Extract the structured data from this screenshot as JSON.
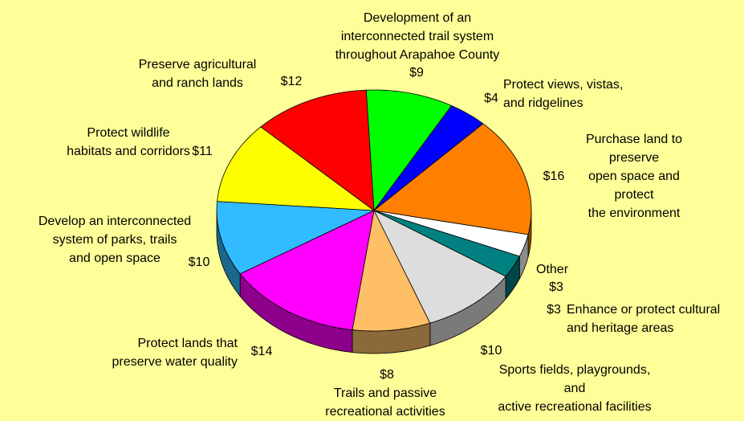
{
  "chart_data": {
    "type": "pie",
    "categories": [
      "Development of an\ninterconnected trail system\nthroughout Arapahoe County",
      "Protect views, vistas,\nand ridgelines",
      "Purchase land to preserve\nopen space and protect\nthe environment",
      "Other",
      "Enhance or protect cultural\nand heritage areas",
      "Sports fields, playgrounds, and\nactive recreational facilities",
      "Trails and passive\nrecreational activities",
      "Protect lands that\npreserve water quality",
      "Develop an interconnected\nsystem of parks, trails\nand open space",
      "Protect wildlife\nhabitats and corridors",
      "Preserve agricultural\nand ranch lands"
    ],
    "values": [
      9,
      4,
      16,
      3,
      3,
      10,
      8,
      14,
      10,
      11,
      12
    ],
    "value_labels": [
      "$9",
      "$4",
      "$16",
      "$3",
      "$3",
      "$10",
      "$8",
      "$14",
      "$10",
      "$11",
      "$12"
    ],
    "colors": [
      "#00ff00",
      "#0000ff",
      "#ff8000",
      "#ffffff",
      "#008080",
      "#dddddd",
      "#ffbf66",
      "#ff00ff",
      "#33bbff",
      "#ffff00",
      "#ff0000"
    ]
  }
}
